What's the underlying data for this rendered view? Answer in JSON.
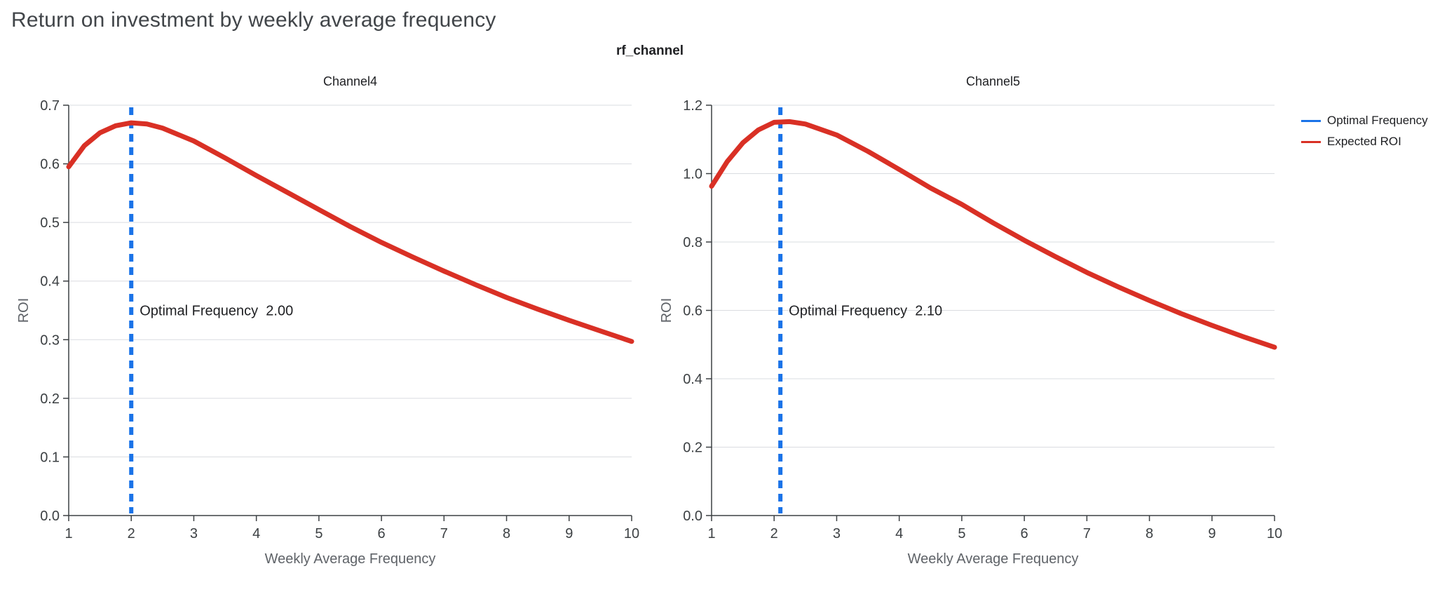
{
  "page": {
    "title": "Return on investment by weekly average frequency",
    "suptitle": "rf_channel"
  },
  "colors": {
    "title_text": "#414549",
    "suptitle_text": "#202124",
    "grid": "#dadce0",
    "axis": "#3c4043",
    "tick_label": "#3c4043",
    "subplot_title": "#202124",
    "axis_label": "#5f6368",
    "annotation": "#202124",
    "optimal_frequency": "#1a73e8",
    "expected_roi": "#d93025"
  },
  "legend": {
    "items": [
      {
        "label": "Optimal Frequency",
        "color": "#1a73e8"
      },
      {
        "label": "Expected ROI",
        "color": "#d93025"
      }
    ]
  },
  "chart_data": [
    {
      "type": "line",
      "title": "Channel4",
      "xlabel": "Weekly Average Frequency",
      "ylabel": "ROI",
      "xlim": [
        1,
        10
      ],
      "ylim": [
        0,
        0.7
      ],
      "xticks": [
        1,
        2,
        3,
        4,
        5,
        6,
        7,
        8,
        9,
        10
      ],
      "yticks": [
        0,
        0.1,
        0.2,
        0.3,
        0.4,
        0.5,
        0.6,
        0.7
      ],
      "grid": "horizontal",
      "legend_position": "right",
      "vline": {
        "label": "Optimal Frequency",
        "x": 2.0,
        "value": "2.00"
      },
      "annotation": "Optimal Frequency  2.00",
      "series": [
        {
          "name": "Expected ROI",
          "x": [
            1,
            1.25,
            1.5,
            1.75,
            2,
            2.25,
            2.5,
            3,
            3.5,
            4,
            4.5,
            5,
            5.5,
            6,
            6.5,
            7,
            7.5,
            8,
            8.5,
            9,
            9.5,
            10
          ],
          "y": [
            0.595,
            0.631,
            0.653,
            0.665,
            0.67,
            0.668,
            0.661,
            0.639,
            0.61,
            0.58,
            0.551,
            0.522,
            0.493,
            0.466,
            0.441,
            0.417,
            0.394,
            0.372,
            0.352,
            0.333,
            0.315,
            0.297
          ]
        }
      ]
    },
    {
      "type": "line",
      "title": "Channel5",
      "xlabel": "Weekly Average Frequency",
      "ylabel": "ROI",
      "xlim": [
        1,
        10
      ],
      "ylim": [
        0,
        1.2
      ],
      "xticks": [
        1,
        2,
        3,
        4,
        5,
        6,
        7,
        8,
        9,
        10
      ],
      "yticks": [
        0,
        0.2,
        0.4,
        0.6,
        0.8,
        1.0,
        1.2
      ],
      "grid": "horizontal",
      "legend_position": "right",
      "vline": {
        "label": "Optimal Frequency",
        "x": 2.1,
        "value": "2.10"
      },
      "annotation": "Optimal Frequency  2.10",
      "series": [
        {
          "name": "Expected ROI",
          "x": [
            1,
            1.25,
            1.5,
            1.75,
            2,
            2.25,
            2.5,
            3,
            3.5,
            4,
            4.5,
            5,
            5.5,
            6,
            6.5,
            7,
            7.5,
            8,
            8.5,
            9,
            9.5,
            10
          ],
          "y": [
            0.963,
            1.035,
            1.09,
            1.128,
            1.15,
            1.152,
            1.145,
            1.113,
            1.065,
            1.012,
            0.958,
            0.91,
            0.856,
            0.805,
            0.757,
            0.711,
            0.669,
            0.629,
            0.591,
            0.556,
            0.523,
            0.492
          ]
        }
      ]
    }
  ]
}
